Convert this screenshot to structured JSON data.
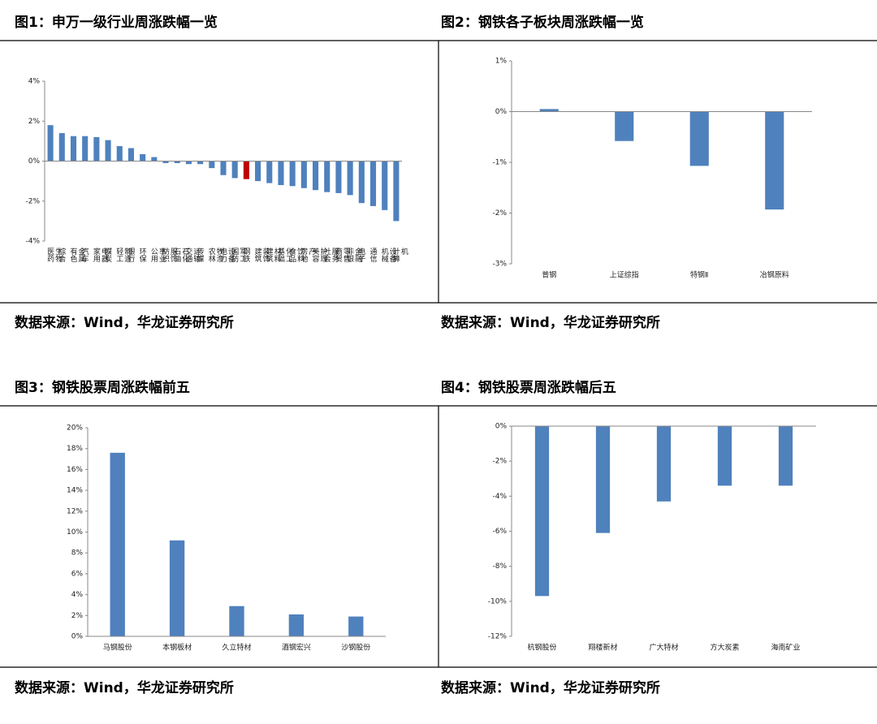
{
  "chart_data": [
    {
      "type": "bar",
      "title": "图1：申万一级行业周涨跌幅一览",
      "source": "数据来源：Wind，华龙证券研究所",
      "categories": [
        "医药生物",
        "综合",
        "有色金属",
        "汽车",
        "家用电器",
        "煤炭",
        "轻工制造",
        "银行",
        "环保",
        "公用事业",
        "纺织服饰",
        "石油石化",
        "交通运输",
        "传媒",
        "农林牧渔",
        "电力设备",
        "国防军工",
        "钢铁",
        "建筑装饰",
        "建筑材料",
        "基础化工",
        "食品饮料",
        "房地产",
        "美容护理",
        "社会服务",
        "商贸零售",
        "非银金融",
        "电子",
        "通信",
        "机械设备",
        "计算机"
      ],
      "values": [
        1.8,
        1.4,
        1.25,
        1.25,
        1.2,
        1.05,
        0.75,
        0.65,
        0.35,
        0.2,
        -0.1,
        -0.1,
        -0.15,
        -0.15,
        -0.35,
        -0.7,
        -0.85,
        -0.9,
        -1.0,
        -1.1,
        -1.2,
        -1.25,
        -1.35,
        -1.45,
        -1.55,
        -1.6,
        -1.7,
        -2.1,
        -2.25,
        -2.45,
        -3.0
      ],
      "colors": [
        "#4f81bd",
        "#4f81bd",
        "#4f81bd",
        "#4f81bd",
        "#4f81bd",
        "#4f81bd",
        "#4f81bd",
        "#4f81bd",
        "#4f81bd",
        "#4f81bd",
        "#4f81bd",
        "#4f81bd",
        "#4f81bd",
        "#4f81bd",
        "#4f81bd",
        "#4f81bd",
        "#4f81bd",
        "#c00000",
        "#4f81bd",
        "#4f81bd",
        "#4f81bd",
        "#4f81bd",
        "#4f81bd",
        "#4f81bd",
        "#4f81bd",
        "#4f81bd",
        "#4f81bd",
        "#4f81bd",
        "#4f81bd",
        "#4f81bd",
        "#4f81bd"
      ],
      "ylim": [
        -4,
        4
      ],
      "yticks": [
        {
          "value": -4,
          "label": "-4%"
        },
        {
          "value": -2,
          "label": "-2%"
        },
        {
          "value": 0,
          "label": "0%"
        },
        {
          "value": 2,
          "label": "2%"
        },
        {
          "value": 4,
          "label": "4%"
        }
      ]
    },
    {
      "type": "bar",
      "title": "图2：钢铁各子板块周涨跌幅一览",
      "source": "数据来源：Wind，华龙证券研究所",
      "categories": [
        "普钢",
        "上证综指",
        "特钢Ⅱ",
        "冶钢原料"
      ],
      "values": [
        0.05,
        -0.58,
        -1.07,
        -1.93
      ],
      "color": "#4f81bd",
      "ylim": [
        -3,
        1
      ],
      "yticks": [
        {
          "value": -3,
          "label": "-3%"
        },
        {
          "value": -2,
          "label": "-2%"
        },
        {
          "value": -1,
          "label": "-1%"
        },
        {
          "value": 0,
          "label": "0%"
        },
        {
          "value": 1,
          "label": "1%"
        }
      ]
    },
    {
      "type": "bar",
      "title": "图3：钢铁股票周涨跌幅前五",
      "source": "数据来源：Wind，华龙证券研究所",
      "categories": [
        "马钢股份",
        "本钢板材",
        "久立特材",
        "酒钢宏兴",
        "沙钢股份"
      ],
      "values": [
        17.6,
        9.2,
        2.9,
        2.1,
        1.9
      ],
      "color": "#4f81bd",
      "ylim": [
        0,
        20
      ],
      "yticks": [
        {
          "value": 0,
          "label": "0%"
        },
        {
          "value": 2,
          "label": "2%"
        },
        {
          "value": 4,
          "label": "4%"
        },
        {
          "value": 6,
          "label": "6%"
        },
        {
          "value": 8,
          "label": "8%"
        },
        {
          "value": 10,
          "label": "10%"
        },
        {
          "value": 12,
          "label": "12%"
        },
        {
          "value": 14,
          "label": "14%"
        },
        {
          "value": 16,
          "label": "16%"
        },
        {
          "value": 18,
          "label": "18%"
        },
        {
          "value": 20,
          "label": "20%"
        }
      ]
    },
    {
      "type": "bar",
      "title": "图4：钢铁股票周涨跌幅后五",
      "source": "数据来源：Wind，华龙证券研究所",
      "categories": [
        "杭钢股份",
        "翔楼新材",
        "广大特材",
        "方大炭素",
        "海南矿业"
      ],
      "values": [
        -9.7,
        -6.1,
        -4.3,
        -3.4,
        -3.4
      ],
      "color": "#4f81bd",
      "ylim": [
        -12,
        0
      ],
      "yticks": [
        {
          "value": -12,
          "label": "-12%"
        },
        {
          "value": -10,
          "label": "-10%"
        },
        {
          "value": -8,
          "label": "-8%"
        },
        {
          "value": -6,
          "label": "-6%"
        },
        {
          "value": -4,
          "label": "-4%"
        },
        {
          "value": -2,
          "label": "-2%"
        },
        {
          "value": 0,
          "label": "0%"
        }
      ]
    }
  ]
}
